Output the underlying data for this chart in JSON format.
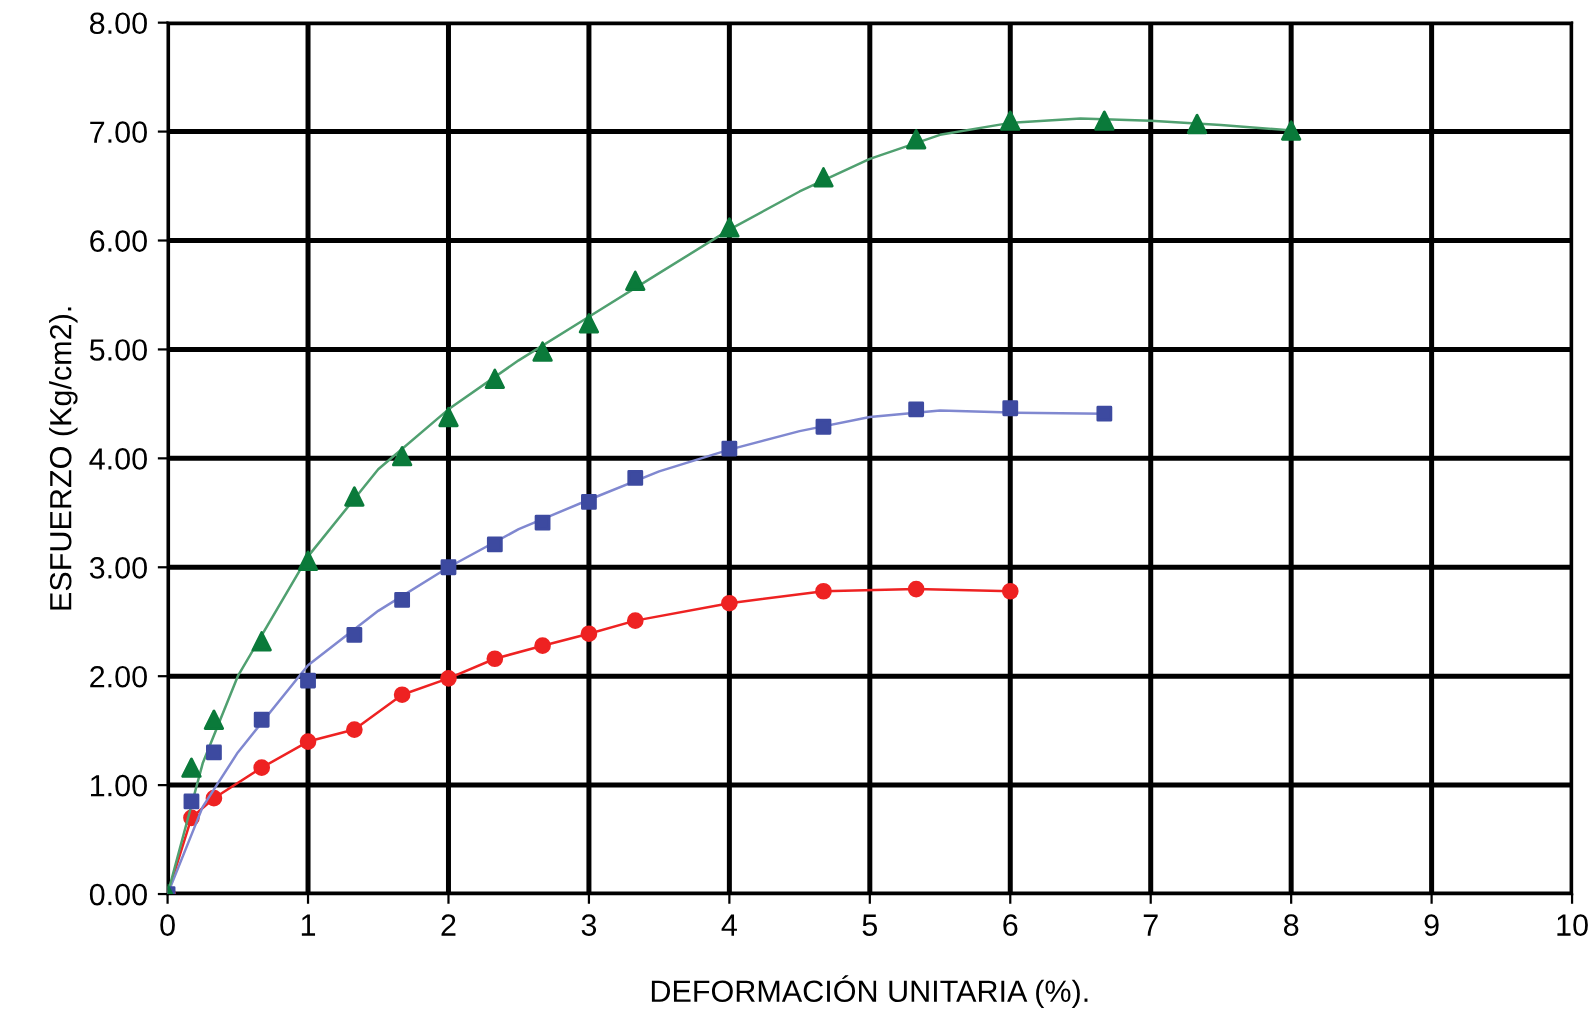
{
  "chart_data": {
    "type": "scatter",
    "xlabel": "DEFORMACIÓN UNITARIA (%).",
    "ylabel": "ESFUERZO (Kg/cm2).",
    "xlim": [
      0,
      10
    ],
    "xticks": [
      0,
      1,
      2,
      3,
      4,
      5,
      6,
      7,
      8,
      9,
      10
    ],
    "ylim": [
      0,
      8
    ],
    "yticks": [
      {
        "value": 0,
        "label": "0.00"
      },
      {
        "value": 1,
        "label": "1.00"
      },
      {
        "value": 2,
        "label": "2.00"
      },
      {
        "value": 3,
        "label": "3.00"
      },
      {
        "value": 4,
        "label": "4.00"
      },
      {
        "value": 5,
        "label": "5.00"
      },
      {
        "value": 6,
        "label": "6.00"
      },
      {
        "value": 7,
        "label": "7.00"
      },
      {
        "value": 8,
        "label": "8.00"
      }
    ],
    "grid": true,
    "legend": false,
    "series": [
      {
        "type": "line",
        "marker": "circle",
        "color": "#ee2222",
        "x": [
          0,
          0.17,
          0.33,
          0.67,
          1,
          1.33,
          1.67,
          2,
          2.33,
          2.67,
          3,
          3.33,
          4,
          4.67,
          5.33,
          6
        ],
        "values": [
          0,
          0.7,
          0.88,
          1.16,
          1.4,
          1.51,
          1.83,
          1.98,
          2.16,
          2.28,
          2.39,
          2.51,
          2.67,
          2.78,
          2.8,
          2.78
        ]
      },
      {
        "marker": "square",
        "color": "#3d4aa0",
        "x": [
          0,
          0.17,
          0.33,
          0.67,
          1,
          1.33,
          1.67,
          2,
          2.33,
          2.67,
          3,
          3.33,
          4,
          4.67,
          5.33,
          6,
          6.67
        ],
        "values": [
          0,
          0.85,
          1.3,
          1.6,
          1.96,
          2.38,
          2.7,
          3.0,
          3.21,
          3.41,
          3.6,
          3.82,
          4.09,
          4.29,
          4.45,
          4.46,
          4.41
        ]
      },
      {
        "type": "line",
        "marker": "none",
        "color": "#8088d0",
        "x": [
          0,
          0.25,
          0.5,
          1,
          1.5,
          2,
          2.5,
          3,
          3.5,
          4,
          4.5,
          5,
          5.5,
          6,
          6.67
        ],
        "values": [
          0,
          0.8,
          1.3,
          2.1,
          2.6,
          3.0,
          3.35,
          3.62,
          3.88,
          4.08,
          4.25,
          4.38,
          4.44,
          4.42,
          4.41
        ]
      },
      {
        "marker": "triangle",
        "color": "#0a7a3a",
        "x": [
          0,
          0.17,
          0.33,
          0.67,
          1,
          1.33,
          1.67,
          2,
          2.33,
          2.67,
          3,
          3.33,
          4,
          4.67,
          5.33,
          6,
          6.67,
          7.33,
          8
        ],
        "values": [
          0,
          1.16,
          1.6,
          2.32,
          3.06,
          3.65,
          4.02,
          4.38,
          4.73,
          4.98,
          5.24,
          5.63,
          6.12,
          6.58,
          6.93,
          7.1,
          7.1,
          7.07,
          7.01
        ]
      },
      {
        "type": "line",
        "marker": "none",
        "color": "#50a070",
        "x": [
          0,
          0.25,
          0.5,
          1,
          1.5,
          2,
          2.5,
          3,
          3.5,
          4,
          4.5,
          5,
          5.5,
          6,
          6.5,
          7,
          7.5,
          8
        ],
        "values": [
          0,
          1.2,
          2.0,
          3.1,
          3.9,
          4.45,
          4.9,
          5.3,
          5.7,
          6.1,
          6.45,
          6.75,
          6.97,
          7.08,
          7.12,
          7.1,
          7.06,
          7.01
        ]
      }
    ]
  }
}
